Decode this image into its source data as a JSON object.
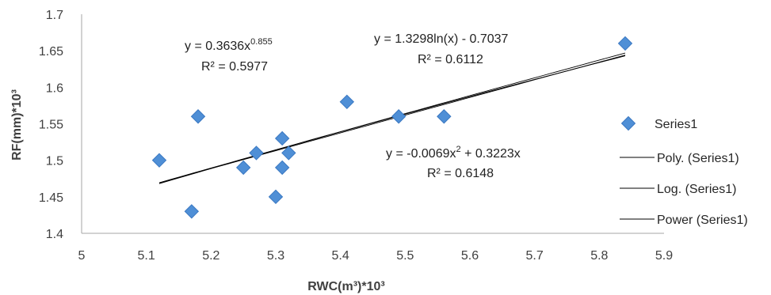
{
  "chart_data": {
    "type": "scatter",
    "xlabel": "RWC(m³)*10³",
    "ylabel": "RF(mm)*10³",
    "xlim": [
      5,
      5.9
    ],
    "ylim": [
      1.4,
      1.7
    ],
    "x_ticks": [
      "5",
      "5.1",
      "5.2",
      "5.3",
      "5.4",
      "5.5",
      "5.6",
      "5.7",
      "5.8",
      "5.9"
    ],
    "y_ticks": [
      "1.4",
      "1.45",
      "1.5",
      "1.55",
      "1.6",
      "1.65",
      "1.7"
    ],
    "grid": false,
    "legend_position": "right",
    "series": [
      {
        "name": "Series1",
        "marker": "diamond",
        "color": "#4f8fd6",
        "points": [
          {
            "x": 5.12,
            "y": 1.5
          },
          {
            "x": 5.17,
            "y": 1.43
          },
          {
            "x": 5.18,
            "y": 1.56
          },
          {
            "x": 5.25,
            "y": 1.49
          },
          {
            "x": 5.27,
            "y": 1.51
          },
          {
            "x": 5.3,
            "y": 1.45
          },
          {
            "x": 5.31,
            "y": 1.53
          },
          {
            "x": 5.31,
            "y": 1.49
          },
          {
            "x": 5.32,
            "y": 1.51
          },
          {
            "x": 5.41,
            "y": 1.58
          },
          {
            "x": 5.49,
            "y": 1.56
          },
          {
            "x": 5.56,
            "y": 1.56
          },
          {
            "x": 5.84,
            "y": 1.66
          }
        ]
      }
    ],
    "trendlines": [
      {
        "name": "Poly. (Series1)",
        "type": "poly2",
        "a": -0.0069,
        "b": 0.3223,
        "c": 0
      },
      {
        "name": "Log. (Series1)",
        "type": "log",
        "a": 1.3298,
        "b": -0.7037
      },
      {
        "name": "Power (Series1)",
        "type": "power",
        "a": 0.3636,
        "b": 0.855
      }
    ],
    "annotations": {
      "power_eq_prefix": "y = 0.3636x",
      "power_eq_exp": "0.855",
      "power_r2": "R² = 0.5977",
      "log_eq": "y = 1.3298ln(x) - 0.7037",
      "log_r2": "R² = 0.6112",
      "poly_eq_a": "y = -0.0069x",
      "poly_eq_sup": "2",
      "poly_eq_b": " + 0.3223x",
      "poly_r2": "R² = 0.6148"
    },
    "legend": [
      "Series1",
      "Poly. (Series1)",
      "Log. (Series1)",
      "Power (Series1)"
    ],
    "colors": {
      "marker": "#4f8fd6",
      "marker_edge": "#3a78c2",
      "trendline": "#000000",
      "axis": "#a6a6a6"
    }
  }
}
